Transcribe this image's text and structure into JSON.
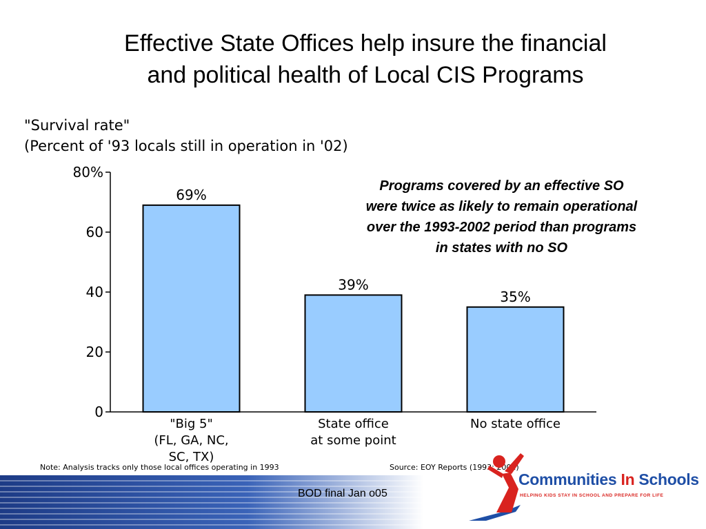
{
  "slide": {
    "title_line1": "Effective State Offices help insure the financial",
    "title_line2": "and political health of Local CIS Programs",
    "callout_lines": [
      "Programs covered by an effective SO",
      "were twice as likely to remain operational",
      "over the 1993-2002 period than programs",
      "in states with no SO"
    ],
    "note": "Note:  Analysis tracks only those local offices operating in 1993",
    "source": "Source:  EOY Reports (1993; 2002)",
    "footer": "BOD final Jan o05",
    "logo": {
      "name_part1": "Communities ",
      "name_part2": "In",
      "name_part3": " Schools",
      "tagline": "HELPING KIDS STAY IN SCHOOL AND PREPARE FOR LIFE"
    },
    "colors": {
      "bar_fill": "#99ccff",
      "footer_band": "#1d3b86",
      "logo_blue": "#1f4fa6",
      "logo_red": "#d9231f"
    }
  },
  "chart_data": {
    "type": "bar",
    "title_line1": "\"Survival rate\"",
    "title_line2": "(Percent of '93 locals still in operation in '02)",
    "categories": [
      [
        "\"Big 5\"",
        "(FL, GA, NC,",
        "SC, TX)"
      ],
      [
        "State office",
        "at some point"
      ],
      [
        "No state office"
      ]
    ],
    "values": [
      69,
      39,
      35
    ],
    "data_labels": [
      "69%",
      "39%",
      "35%"
    ],
    "yticks": [
      0,
      20,
      40,
      60,
      80
    ],
    "ytick_labels": [
      "0",
      "20",
      "40",
      "60",
      "80%"
    ],
    "ylim": [
      0,
      80
    ],
    "grid": false,
    "legend": "none"
  }
}
